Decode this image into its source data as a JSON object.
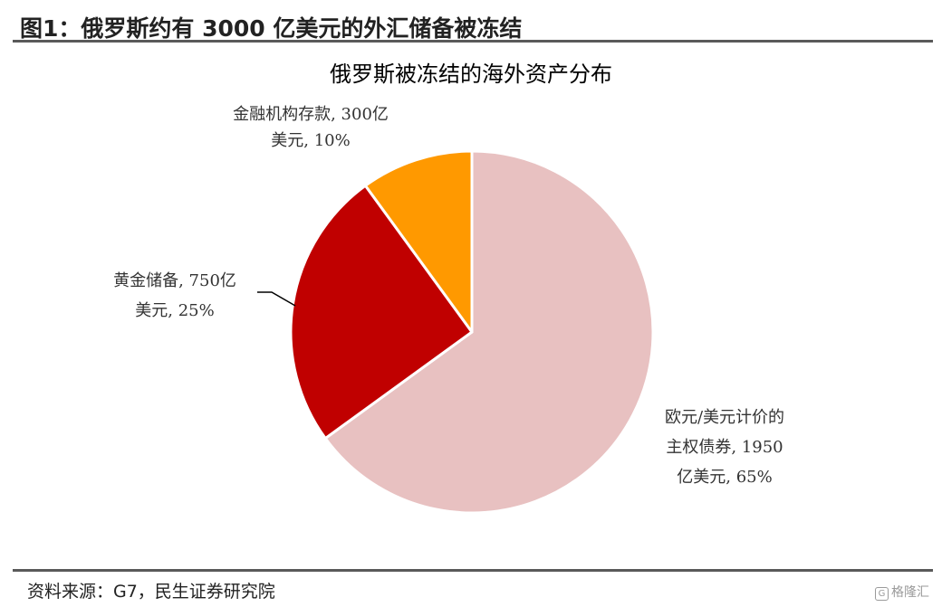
{
  "figure": {
    "title": "图1：俄罗斯约有 3000 亿美元的外汇储备被冻结",
    "source": "资料来源：G7，民生证券研究院",
    "watermark": "格隆汇"
  },
  "chart_data": {
    "type": "pie",
    "title": "俄罗斯被冻结的海外资产分布",
    "slices": [
      {
        "name": "欧元/美元计价的主权债券",
        "value": 1950,
        "unit": "亿美元",
        "percent": 65,
        "color": "#E8C1C1",
        "label_lines": [
          "欧元/美元计价的",
          "主权债券, 1950",
          "亿美元, 65%"
        ]
      },
      {
        "name": "黄金储备",
        "value": 750,
        "unit": "亿美元",
        "percent": 25,
        "color": "#C00000",
        "label_lines": [
          "黄金储备, 750亿",
          "美元, 25%"
        ]
      },
      {
        "name": "金融机构存款",
        "value": 300,
        "unit": "亿美元",
        "percent": 10,
        "color": "#FF9900",
        "label_lines": [
          "金融机构存款, 300亿",
          "美元, 10%"
        ]
      }
    ],
    "start_angle_deg": 0,
    "direction": "clockwise",
    "legend": "none"
  }
}
